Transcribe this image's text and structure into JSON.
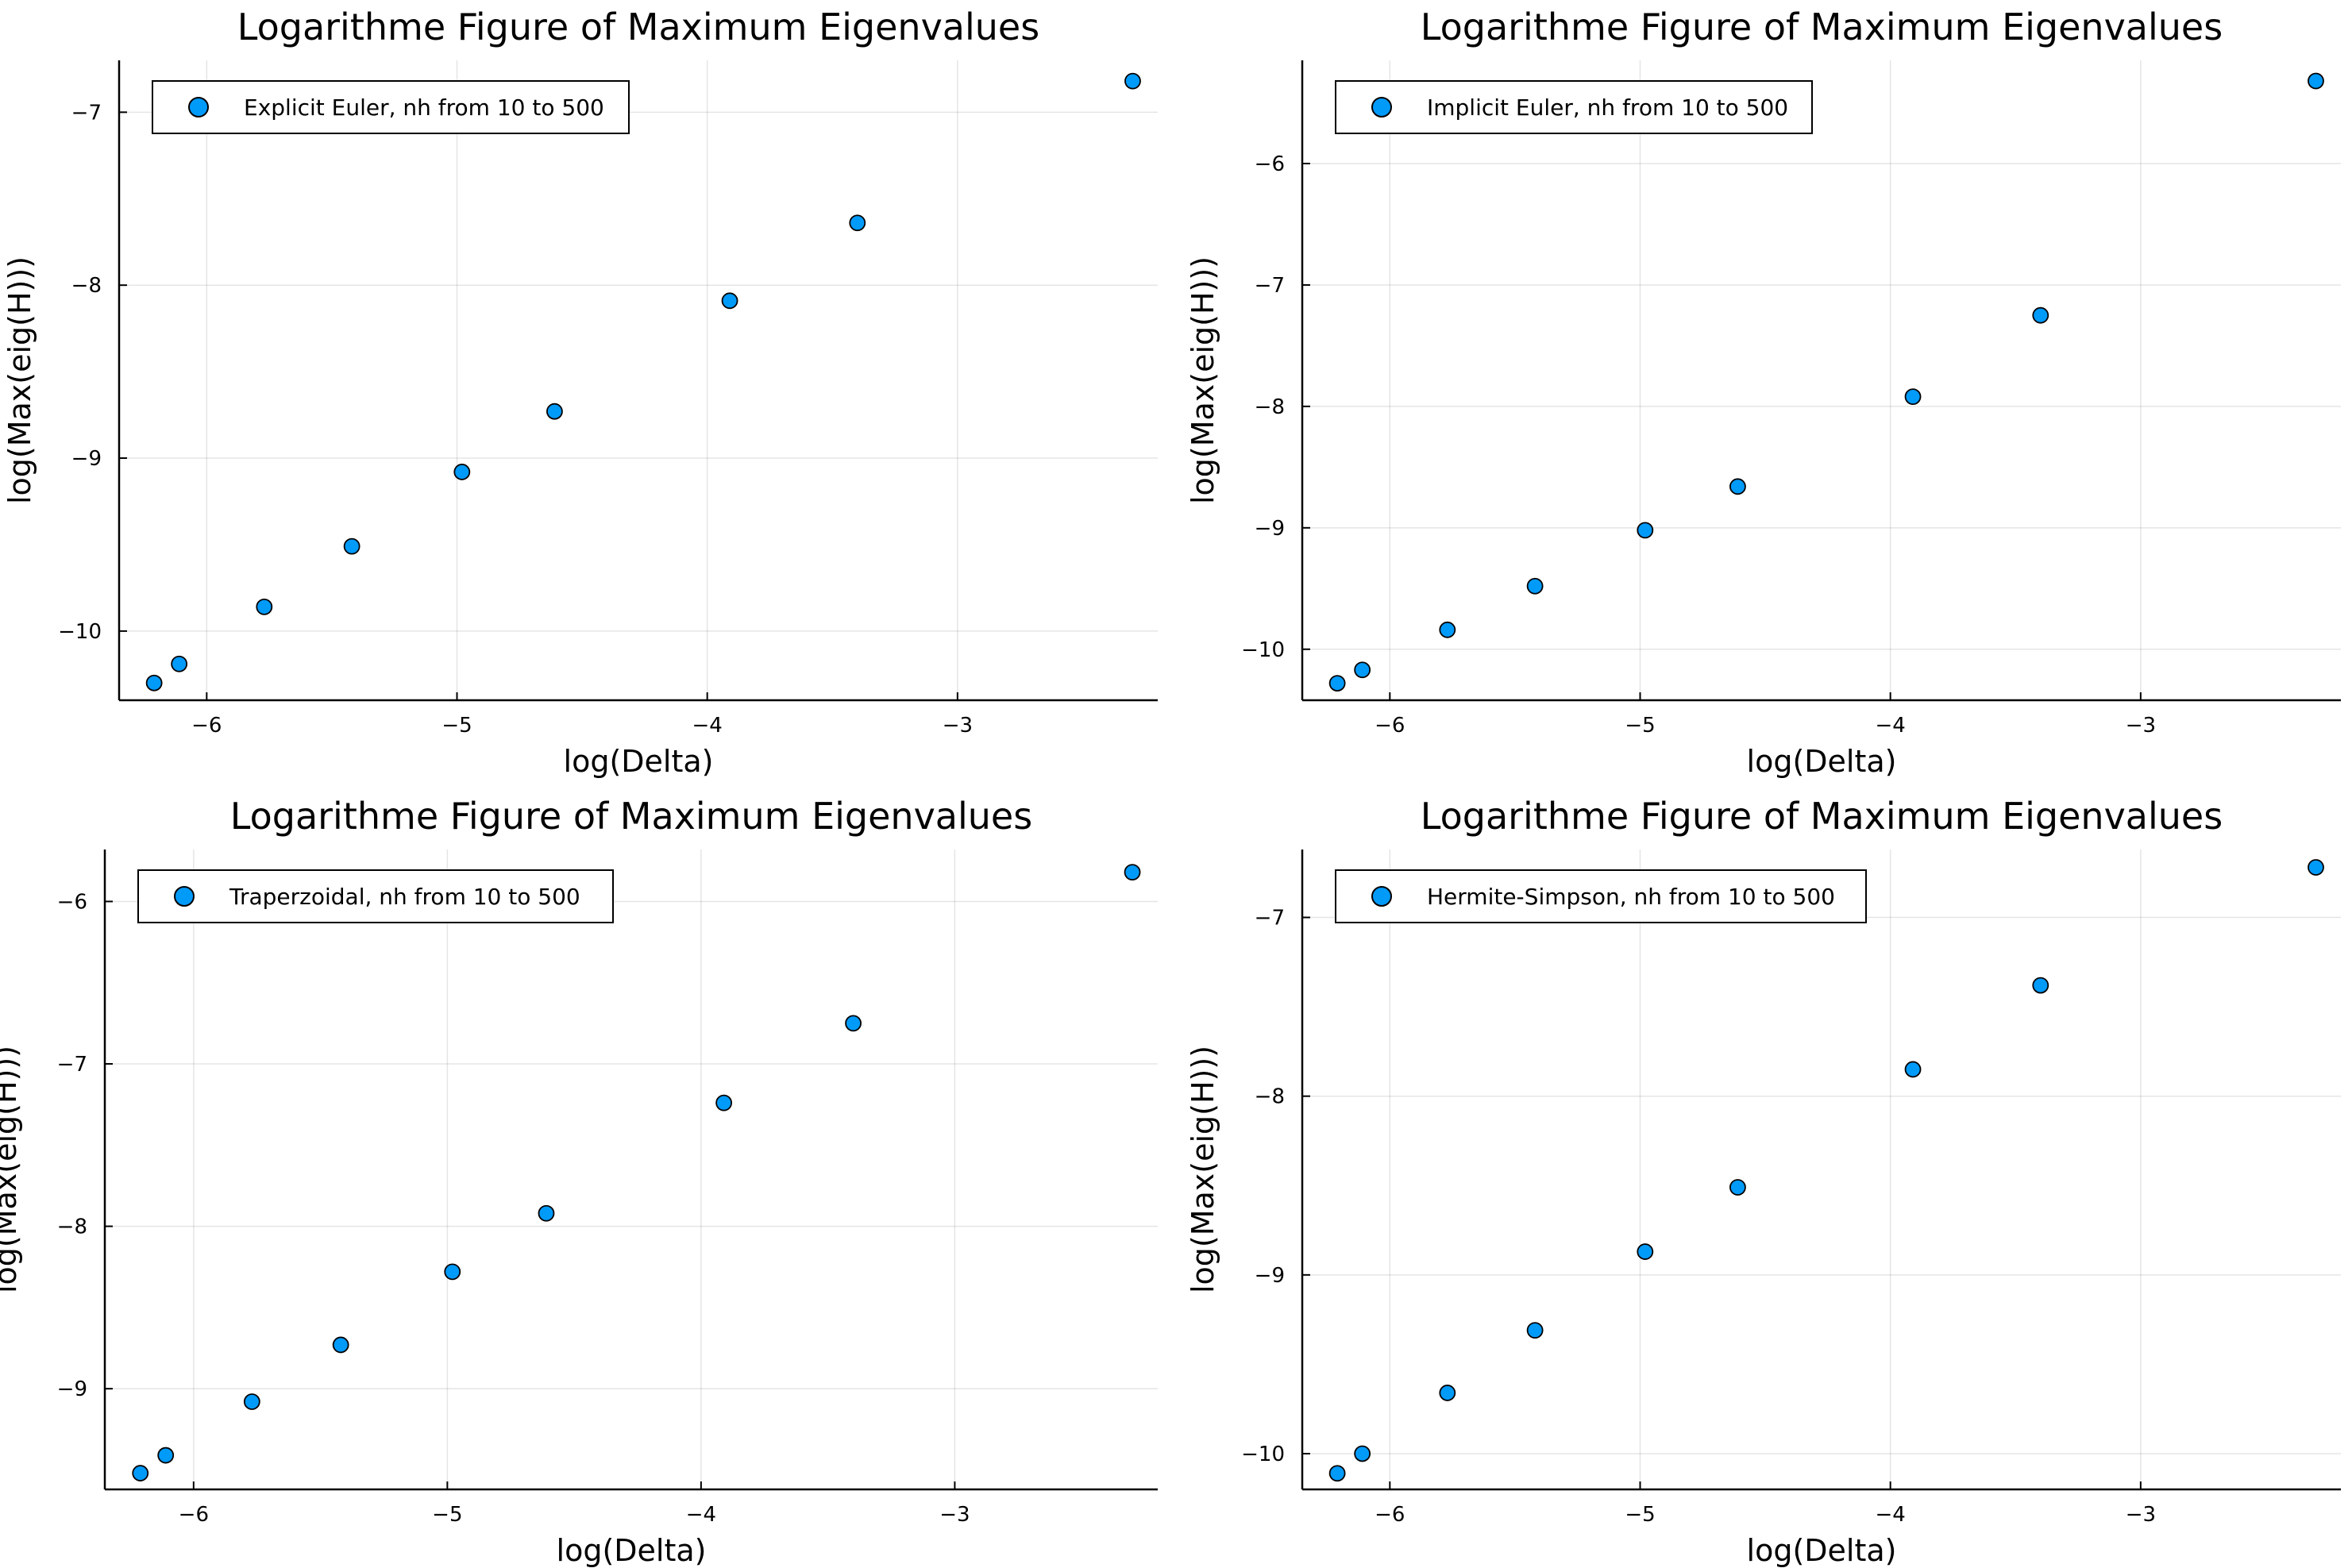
{
  "chart_data": [
    {
      "type": "scatter",
      "title": "Logarithme Figure of Maximum Eigenvalues",
      "xlabel": "log(Delta)",
      "ylabel": "log(Max(eig(H)))",
      "xlim": [
        -6.35,
        -2.2
      ],
      "ylim": [
        -10.4,
        -6.7
      ],
      "xticks": [
        -6,
        -5,
        -4,
        -3
      ],
      "yticks": [
        -10,
        -9,
        -8,
        -7
      ],
      "grid": true,
      "legend_position": "top-left",
      "series": [
        {
          "name": "Explicit Euler, nh from 10 to 500",
          "color": "#009af9",
          "x": [
            -6.21,
            -6.11,
            -5.77,
            -5.42,
            -4.98,
            -4.61,
            -3.91,
            -3.4,
            -2.3
          ],
          "y": [
            -10.3,
            -10.19,
            -9.86,
            -9.51,
            -9.08,
            -8.73,
            -8.09,
            -7.64,
            -6.82
          ]
        }
      ]
    },
    {
      "type": "scatter",
      "title": "Logarithme Figure of Maximum Eigenvalues",
      "xlabel": "log(Delta)",
      "ylabel": "log(Max(eig(H)))",
      "xlim": [
        -6.35,
        -2.2
      ],
      "ylim": [
        -10.42,
        -5.15
      ],
      "xticks": [
        -6,
        -5,
        -4,
        -3
      ],
      "yticks": [
        -10,
        -9,
        -8,
        -7,
        -6
      ],
      "grid": true,
      "legend_position": "top-left",
      "series": [
        {
          "name": "Implicit Euler, nh from 10 to 500",
          "color": "#009af9",
          "x": [
            -6.21,
            -6.11,
            -5.77,
            -5.42,
            -4.98,
            -4.61,
            -3.91,
            -3.4,
            -2.3
          ],
          "y": [
            -10.28,
            -10.17,
            -9.84,
            -9.48,
            -9.02,
            -8.66,
            -7.92,
            -7.25,
            -5.32
          ]
        }
      ]
    },
    {
      "type": "scatter",
      "title": "Logarithme Figure of Maximum Eigenvalues",
      "xlabel": "log(Delta)",
      "ylabel": "log(Max(eig(H)))",
      "xlim": [
        -6.35,
        -2.2
      ],
      "ylim": [
        -9.62,
        -5.68
      ],
      "xticks": [
        -6,
        -5,
        -4,
        -3
      ],
      "yticks": [
        -9,
        -8,
        -7,
        -6
      ],
      "grid": true,
      "legend_position": "top-left",
      "series": [
        {
          "name": "Traperzoidal, nh from 10 to 500",
          "color": "#009af9",
          "x": [
            -6.21,
            -6.11,
            -5.77,
            -5.42,
            -4.98,
            -4.61,
            -3.91,
            -3.4,
            -2.3
          ],
          "y": [
            -9.52,
            -9.41,
            -9.08,
            -8.73,
            -8.28,
            -7.92,
            -7.24,
            -6.75,
            -5.82
          ]
        }
      ]
    },
    {
      "type": "scatter",
      "title": "Logarithme Figure of Maximum Eigenvalues",
      "xlabel": "log(Delta)",
      "ylabel": "log(Max(eig(H)))",
      "xlim": [
        -6.35,
        -2.2
      ],
      "ylim": [
        -10.2,
        -6.62
      ],
      "xticks": [
        -6,
        -5,
        -4,
        -3
      ],
      "yticks": [
        -10,
        -9,
        -8,
        -7
      ],
      "grid": true,
      "legend_position": "top-left",
      "series": [
        {
          "name": "Hermite-Simpson, nh from 10 to 500",
          "color": "#009af9",
          "x": [
            -6.21,
            -6.11,
            -5.77,
            -5.42,
            -4.98,
            -4.61,
            -3.91,
            -3.4,
            -2.3
          ],
          "y": [
            -10.11,
            -10.0,
            -9.66,
            -9.31,
            -8.87,
            -8.51,
            -7.85,
            -7.38,
            -6.72
          ]
        }
      ]
    }
  ]
}
